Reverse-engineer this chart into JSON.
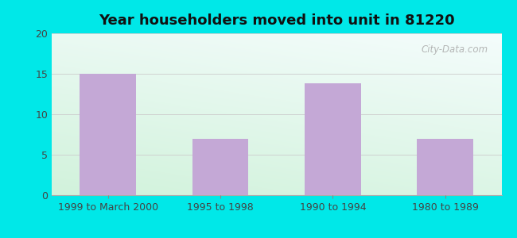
{
  "title": "Year householders moved into unit in 81220",
  "categories": [
    "1999 to March 2000",
    "1995 to 1998",
    "1990 to 1994",
    "1980 to 1989"
  ],
  "values": [
    15,
    7,
    13.8,
    7
  ],
  "bar_color": "#c4a8d6",
  "ylim": [
    0,
    20
  ],
  "yticks": [
    0,
    5,
    10,
    15,
    20
  ],
  "background_outer": "#00e8e8",
  "title_fontsize": 13,
  "tick_fontsize": 9,
  "watermark": "City-Data.com"
}
